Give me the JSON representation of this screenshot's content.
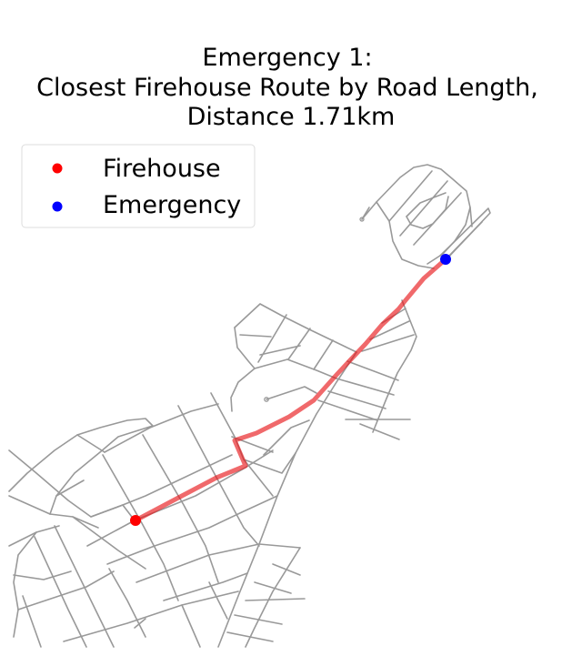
{
  "map": {
    "title_lines": [
      "Emergency 1:",
      "Closest Firehouse Route by Road Length,",
      "Distance 1.71km"
    ],
    "legend": [
      {
        "label": "Firehouse",
        "color": "#ff0000"
      },
      {
        "label": "Emergency",
        "color": "#0000ff"
      }
    ],
    "road_color": "#999999",
    "route_color": "#e8191b"
  }
}
